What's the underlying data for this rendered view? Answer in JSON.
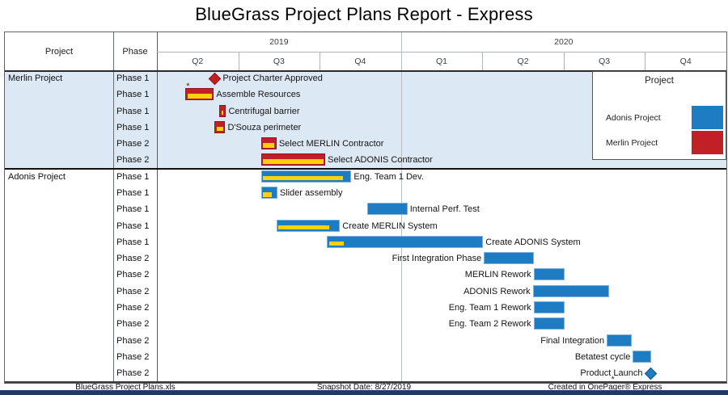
{
  "title": "BlueGrass Project Plans Report - Express",
  "header": {
    "project_col": "Project",
    "phase_col": "Phase",
    "years": [
      {
        "label": "2019",
        "quarters": [
          "Q2",
          "Q3",
          "Q4"
        ]
      },
      {
        "label": "2020",
        "quarters": [
          "Q1",
          "Q2",
          "Q3",
          "Q4"
        ]
      }
    ]
  },
  "legend": {
    "title": "Project",
    "entries": [
      {
        "label": "Adonis Project",
        "color": "#1E7CC2"
      },
      {
        "label": "Merlin Project",
        "color": "#C02026"
      }
    ]
  },
  "footer": {
    "left": "BlueGrass Project Plans.xls",
    "center": "Snapshot Date: 8/27/2019",
    "right": "Created in OnePager® Express"
  },
  "chart_data": {
    "type": "gantt",
    "time_axis": {
      "unit": "quarters",
      "origin": "2019 Q2",
      "span_quarters": 7,
      "year_gridline_at": 3
    },
    "colors": {
      "merlin_bar": "#C02026",
      "merlin_border": "#8D161C",
      "adonis_bar": "#1E7CC2",
      "adonis_border": "#7FB2DC",
      "progress": "#FFD10A",
      "merlin_row_bg": "#DCE9F5",
      "adonis_row_bg": "#FFFFFF"
    },
    "sections": [
      {
        "project": "Merlin Project",
        "tasks": [
          {
            "phase": "Phase 1",
            "label": "Project Charter Approved",
            "milestone": true,
            "at": 0.71,
            "label_side": "right"
          },
          {
            "phase": "Phase 1",
            "label": "Assemble Resources",
            "start": 0.35,
            "end": 0.7,
            "progress": 1.0,
            "label_side": "right",
            "note": "*",
            "note_pos": "above"
          },
          {
            "phase": "Phase 1",
            "label": "Centrifugal barrier",
            "start": 0.77,
            "end": 0.85,
            "progress": 0.7,
            "label_side": "right"
          },
          {
            "phase": "Phase 1",
            "label": "D'Souza perimeter",
            "start": 0.71,
            "end": 0.84,
            "progress": 1.0,
            "label_side": "right"
          },
          {
            "phase": "Phase 2",
            "label": "Select MERLIN Contractor",
            "start": 1.28,
            "end": 1.47,
            "progress": 1.0,
            "label_side": "right"
          },
          {
            "phase": "Phase 2",
            "label": "Select ADONIS Contractor",
            "start": 1.28,
            "end": 2.07,
            "progress": 1.0,
            "label_side": "right"
          }
        ]
      },
      {
        "project": "Adonis Project",
        "tasks": [
          {
            "phase": "Phase 1",
            "label": "Eng. Team 1 Dev.",
            "start": 1.28,
            "end": 2.39,
            "progress": 0.93,
            "label_side": "right"
          },
          {
            "phase": "Phase 1",
            "label": "Slider assembly",
            "start": 1.28,
            "end": 1.48,
            "progress": 0.7,
            "label_side": "right"
          },
          {
            "phase": "Phase 1",
            "label": "Internal Perf. Test",
            "start": 2.59,
            "end": 3.08,
            "progress": 0,
            "label_side": "right"
          },
          {
            "phase": "Phase 1",
            "label": "Create MERLIN System",
            "start": 1.47,
            "end": 2.25,
            "progress": 0.85,
            "label_side": "right"
          },
          {
            "phase": "Phase 1",
            "label": "Create ADONIS System",
            "start": 2.09,
            "end": 4.01,
            "progress": 0.1,
            "label_side": "right"
          },
          {
            "phase": "Phase 2",
            "label": "First Integration Phase",
            "start": 4.02,
            "end": 4.63,
            "progress": 0,
            "label_side": "left"
          },
          {
            "phase": "Phase 2",
            "label": "MERLIN Rework",
            "start": 4.63,
            "end": 5.01,
            "progress": 0,
            "label_side": "left"
          },
          {
            "phase": "Phase 2",
            "label": "ADONIS Rework",
            "start": 4.62,
            "end": 5.56,
            "progress": 0,
            "label_side": "left"
          },
          {
            "phase": "Phase 2",
            "label": "Eng. Team 1 Rework",
            "start": 4.63,
            "end": 5.01,
            "progress": 0,
            "label_side": "left"
          },
          {
            "phase": "Phase 2",
            "label": "Eng. Team 2 Rework",
            "start": 4.63,
            "end": 5.01,
            "progress": 0,
            "label_side": "left"
          },
          {
            "phase": "Phase 2",
            "label": "Final Integration",
            "start": 5.53,
            "end": 5.84,
            "progress": 0,
            "label_side": "left"
          },
          {
            "phase": "Phase 2",
            "label": "Betatest cycle",
            "start": 5.85,
            "end": 6.08,
            "progress": 0,
            "label_side": "left"
          },
          {
            "phase": "Phase 2",
            "label": "Product Launch",
            "milestone": true,
            "at": 6.07,
            "label_side": "left",
            "note": "*",
            "note_pos": "below"
          }
        ]
      }
    ]
  }
}
